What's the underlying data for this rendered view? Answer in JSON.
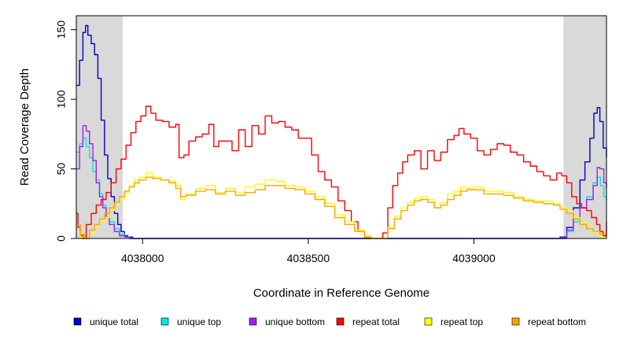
{
  "chart_data": {
    "type": "line",
    "title": "",
    "xlabel": "Coordinate in Reference Genome",
    "ylabel": "Read Coverage Depth",
    "xlim": [
      4037800,
      4039400
    ],
    "ylim": [
      0,
      160
    ],
    "x_ticks": [
      4038000,
      4038500,
      4039000
    ],
    "x_tick_labels": [
      "4038000",
      "4038500",
      "4039000"
    ],
    "y_ticks": [
      0,
      50,
      100,
      150
    ],
    "y_tick_labels": [
      "0",
      "50",
      "100",
      "150"
    ],
    "shaded_regions": [
      [
        4037800,
        4037940
      ],
      [
        4039270,
        4039400
      ]
    ],
    "shade_color": "#d9d9d9",
    "grid": false,
    "legend_position": "bottom",
    "series": [
      {
        "name": "unique total",
        "color": "#0000cd",
        "x": [
          4037800,
          4037810,
          4037820,
          4037828,
          4037835,
          4037845,
          4037855,
          4037865,
          4037875,
          4037885,
          4037895,
          4037905,
          4037915,
          4037925,
          4037935,
          4037945,
          4037955,
          4037970,
          4037990,
          4038100,
          4038500,
          4038900,
          4039200,
          4039260,
          4039280,
          4039300,
          4039320,
          4039335,
          4039350,
          4039362,
          4039372,
          4039380,
          4039390,
          4039400
        ],
        "y": [
          110,
          128,
          148,
          153,
          146,
          140,
          132,
          115,
          85,
          60,
          43,
          30,
          18,
          10,
          5,
          2,
          1,
          0,
          0,
          0,
          0,
          0,
          0,
          1,
          8,
          22,
          42,
          55,
          72,
          90,
          94,
          84,
          65,
          58
        ]
      },
      {
        "name": "unique top",
        "color": "#00e5e5",
        "x": [
          4037800,
          4037810,
          4037820,
          4037830,
          4037840,
          4037850,
          4037860,
          4037870,
          4037880,
          4037890,
          4037900,
          4037915,
          4037930,
          4037945,
          4037960,
          4037980,
          4039260,
          4039280,
          4039300,
          4039320,
          4039340,
          4039360,
          4039372,
          4039382,
          4039392,
          4039400
        ],
        "y": [
          62,
          68,
          72,
          66,
          58,
          48,
          42,
          32,
          24,
          18,
          12,
          7,
          3,
          1,
          0,
          0,
          0,
          5,
          12,
          22,
          30,
          40,
          44,
          38,
          30,
          27
        ]
      },
      {
        "name": "unique bottom",
        "color": "#a020f0",
        "x": [
          4037800,
          4037810,
          4037820,
          4037830,
          4037840,
          4037850,
          4037860,
          4037870,
          4037880,
          4037890,
          4037900,
          4037915,
          4037930,
          4037945,
          4037960,
          4037980,
          4039260,
          4039280,
          4039300,
          4039320,
          4039340,
          4039360,
          4039372,
          4039380,
          4039392,
          4039400
        ],
        "y": [
          50,
          66,
          81,
          77,
          68,
          56,
          40,
          30,
          22,
          15,
          10,
          5,
          2,
          1,
          0,
          0,
          0,
          6,
          14,
          22,
          28,
          38,
          51,
          50,
          40,
          36
        ]
      },
      {
        "name": "repeat total",
        "color": "#ff0000",
        "x": [
          4037800,
          4037805,
          4037812,
          4037820,
          4037830,
          4037845,
          4037860,
          4037875,
          4037890,
          4037905,
          4037920,
          4037935,
          4037950,
          4037965,
          4037980,
          4037995,
          4038010,
          4038025,
          4038040,
          4038060,
          4038080,
          4038100,
          4038110,
          4038125,
          4038140,
          4038160,
          4038180,
          4038200,
          4038215,
          4038230,
          4038250,
          4038270,
          4038290,
          4038310,
          4038330,
          4038350,
          4038370,
          4038390,
          4038410,
          4038430,
          4038450,
          4038470,
          4038490,
          4038510,
          4038530,
          4038550,
          4038570,
          4038590,
          4038610,
          4038630,
          4038650,
          4038670,
          4038690,
          4038700,
          4038725,
          4038740,
          4038755,
          4038770,
          4038785,
          4038800,
          4038820,
          4038840,
          4038860,
          4038880,
          4038900,
          4038920,
          4038940,
          4038955,
          4038970,
          4038990,
          4039010,
          4039030,
          4039050,
          4039070,
          4039090,
          4039110,
          4039130,
          4039150,
          4039170,
          4039190,
          4039210,
          4039230,
          4039250,
          4039265,
          4039280,
          4039295,
          4039310,
          4039325,
          4039340,
          4039355,
          4039370,
          4039380,
          4039390,
          4039400
        ],
        "y": [
          18,
          8,
          2,
          0,
          10,
          18,
          24,
          28,
          33,
          40,
          50,
          57,
          67,
          76,
          84,
          88,
          95,
          90,
          85,
          84,
          80,
          82,
          58,
          60,
          70,
          73,
          75,
          82,
          66,
          70,
          70,
          63,
          78,
          66,
          81,
          75,
          88,
          83,
          84,
          80,
          78,
          72,
          72,
          60,
          48,
          42,
          37,
          27,
          20,
          12,
          5,
          1,
          0,
          0,
          4,
          22,
          38,
          47,
          55,
          60,
          63,
          50,
          63,
          56,
          62,
          71,
          74,
          79,
          75,
          72,
          63,
          60,
          64,
          68,
          67,
          62,
          60,
          55,
          52,
          48,
          45,
          42,
          47,
          45,
          40,
          30,
          25,
          22,
          20,
          15,
          10,
          5,
          2,
          12
        ]
      },
      {
        "name": "repeat top",
        "color": "#ffff00",
        "x": [
          4037800,
          4037812,
          4037825,
          4037840,
          4037855,
          4037870,
          4037885,
          4037900,
          4037915,
          4037930,
          4037945,
          4037960,
          4037975,
          4037990,
          4038010,
          4038030,
          4038055,
          4038080,
          4038100,
          4038115,
          4038130,
          4038160,
          4038190,
          4038220,
          4038250,
          4038280,
          4038310,
          4038340,
          4038370,
          4038400,
          4038430,
          4038460,
          4038490,
          4038520,
          4038550,
          4038580,
          4038610,
          4038640,
          4038670,
          4038690,
          4038720,
          4038740,
          4038760,
          4038780,
          4038800,
          4038820,
          4038840,
          4038860,
          4038880,
          4038900,
          4038920,
          4038940,
          4038960,
          4038980,
          4039000,
          4039030,
          4039060,
          4039090,
          4039120,
          4039150,
          4039180,
          4039210,
          4039240,
          4039260,
          4039280,
          4039300,
          4039320,
          4039340,
          4039360,
          4039380,
          4039400
        ],
        "y": [
          5,
          1,
          0,
          4,
          8,
          12,
          15,
          20,
          24,
          28,
          33,
          38,
          42,
          44,
          47,
          44,
          42,
          41,
          38,
          28,
          32,
          36,
          38,
          33,
          36,
          33,
          37,
          39,
          42,
          41,
          38,
          37,
          34,
          30,
          25,
          17,
          12,
          6,
          2,
          0,
          0,
          8,
          16,
          22,
          26,
          29,
          30,
          28,
          22,
          26,
          32,
          34,
          37,
          36,
          37,
          34,
          34,
          33,
          30,
          28,
          27,
          27,
          25,
          22,
          20,
          15,
          12,
          8,
          4,
          1,
          0
        ]
      },
      {
        "name": "repeat bottom",
        "color": "#ffa500",
        "x": [
          4037800,
          4037812,
          4037825,
          4037840,
          4037855,
          4037870,
          4037885,
          4037900,
          4037915,
          4037930,
          4037945,
          4037960,
          4037975,
          4037990,
          4038010,
          4038030,
          4038055,
          4038080,
          4038100,
          4038115,
          4038130,
          4038160,
          4038190,
          4038220,
          4038250,
          4038280,
          4038310,
          4038340,
          4038370,
          4038400,
          4038430,
          4038460,
          4038490,
          4038520,
          4038550,
          4038580,
          4038610,
          4038640,
          4038670,
          4038690,
          4038720,
          4038740,
          4038760,
          4038780,
          4038800,
          4038820,
          4038840,
          4038860,
          4038880,
          4038900,
          4038920,
          4038940,
          4038960,
          4038980,
          4039000,
          4039030,
          4039060,
          4039090,
          4039120,
          4039150,
          4039180,
          4039210,
          4039240,
          4039260,
          4039280,
          4039300,
          4039320,
          4039340,
          4039360,
          4039380,
          4039400
        ],
        "y": [
          10,
          3,
          0,
          6,
          10,
          14,
          18,
          22,
          26,
          30,
          34,
          37,
          40,
          42,
          44,
          43,
          42,
          40,
          36,
          30,
          31,
          34,
          35,
          32,
          34,
          31,
          33,
          35,
          38,
          38,
          36,
          35,
          32,
          28,
          23,
          15,
          10,
          5,
          1,
          0,
          0,
          7,
          14,
          20,
          24,
          27,
          28,
          26,
          22,
          24,
          28,
          31,
          34,
          35,
          35,
          32,
          32,
          31,
          29,
          27,
          26,
          25,
          24,
          21,
          18,
          14,
          10,
          7,
          5,
          3,
          6
        ]
      }
    ]
  }
}
